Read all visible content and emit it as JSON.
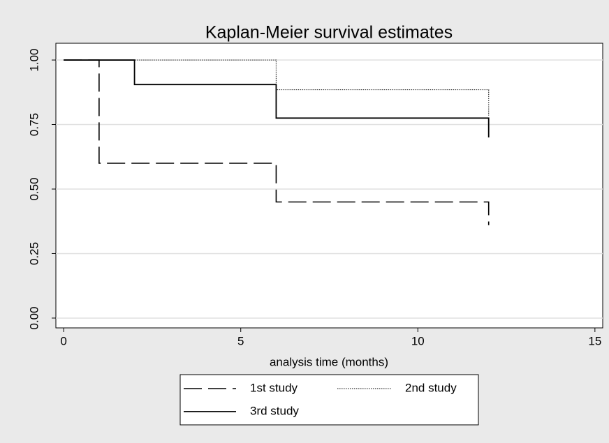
{
  "chart_data": {
    "type": "step",
    "title": "Kaplan-Meier survival estimates",
    "x_label": "analysis time (months)",
    "series": [
      {
        "name": "1st study",
        "color": "#000000",
        "dash": "dashed",
        "x": [
          0,
          1,
          6,
          12
        ],
        "values": [
          1.0,
          0.6,
          0.45,
          0.36
        ]
      },
      {
        "name": "2nd study",
        "color": "#333333",
        "dash": "dotted",
        "x": [
          0,
          6,
          12
        ],
        "values": [
          1.0,
          0.885,
          0.785
        ]
      },
      {
        "name": "3rd study",
        "color": "#000000",
        "dash": "solid",
        "x": [
          0,
          2,
          6,
          12
        ],
        "values": [
          1.0,
          0.905,
          0.775,
          0.7
        ]
      }
    ],
    "xlim": [
      -0.22,
      15.22
    ],
    "ylim": [
      -0.038,
      1.065
    ],
    "xticks": [
      0,
      5,
      10,
      15
    ],
    "yticks": [
      {
        "value": 0,
        "label": "0.00"
      },
      {
        "value": 0.25,
        "label": "0.25"
      },
      {
        "value": 0.5,
        "label": "0.50"
      },
      {
        "value": 0.75,
        "label": "0.75"
      },
      {
        "value": 1,
        "label": "1.00"
      }
    ],
    "grid": true,
    "legend": "bottom"
  }
}
